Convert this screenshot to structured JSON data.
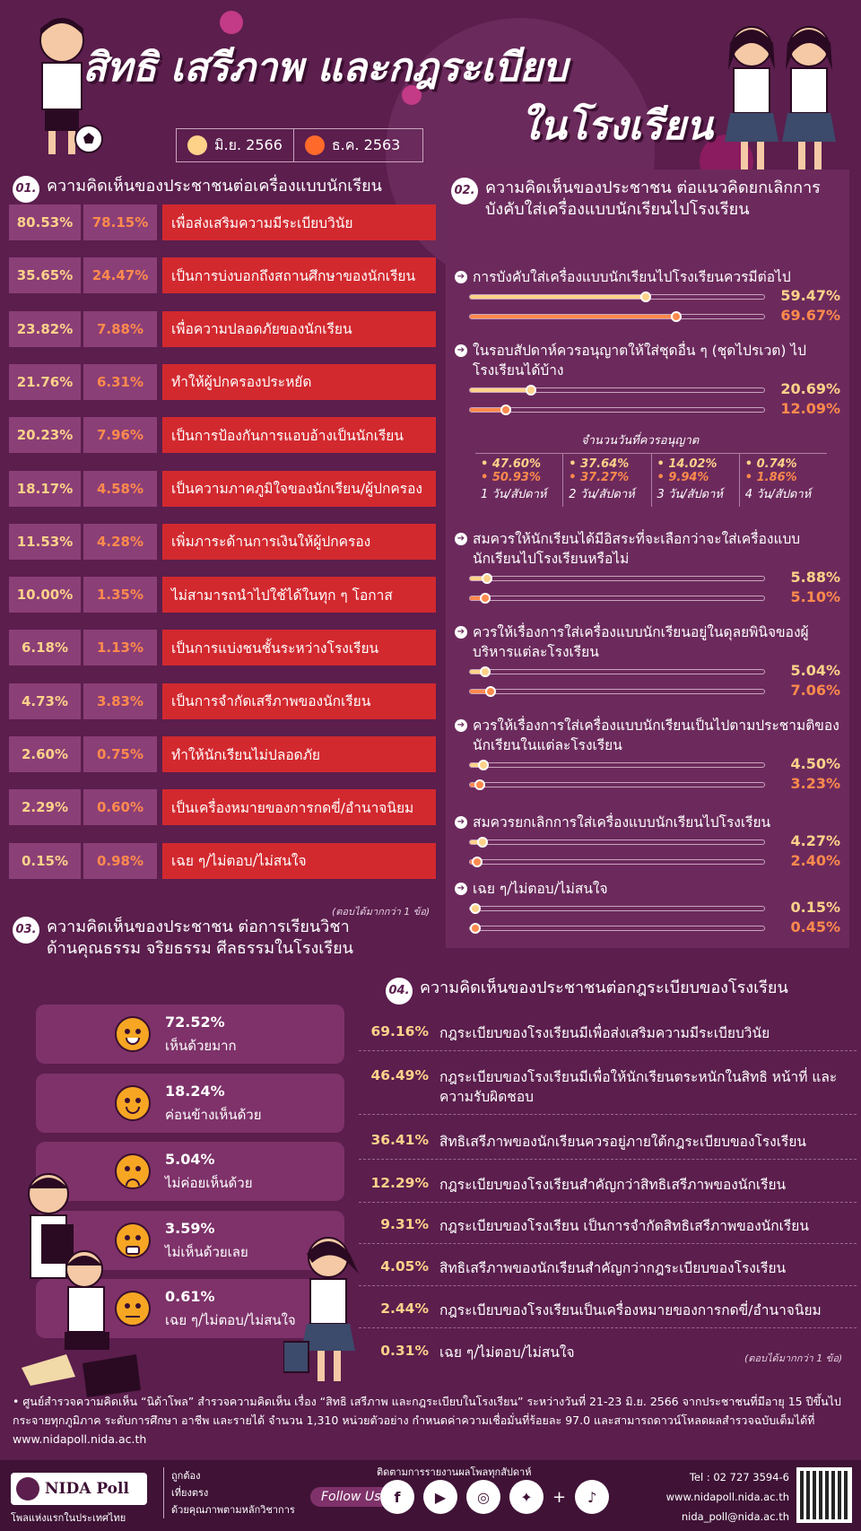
{
  "title_line1": "สิทธิ เสรีภาพ และกฎระเบียบ",
  "title_line2": "ในโรงเรียน",
  "legend": [
    {
      "label": "มิ.ย. 2566",
      "color": "#ffd28a"
    },
    {
      "label": "ธ.ค. 2563",
      "color": "#ff6a2b"
    }
  ],
  "s1": {
    "num": "01.",
    "heading": "ความคิดเห็นของประชาชนต่อเครื่องแบบนักเรียน",
    "note": "(ตอบได้มากกว่า 1 ข้อ)",
    "rows": [
      {
        "a": "80.53%",
        "b": "78.15%",
        "label": "เพื่อส่งเสริมความมีระเบียบวินัย"
      },
      {
        "a": "35.65%",
        "b": "24.47%",
        "label": "เป็นการบ่งบอกถึงสถานศึกษาของนักเรียน"
      },
      {
        "a": "23.82%",
        "b": "7.88%",
        "label": "เพื่อความปลอดภัยของนักเรียน"
      },
      {
        "a": "21.76%",
        "b": "6.31%",
        "label": "ทำให้ผู้ปกครองประหยัด"
      },
      {
        "a": "20.23%",
        "b": "7.96%",
        "label": "เป็นการป้องกันการแอบอ้างเป็นนักเรียน"
      },
      {
        "a": "18.17%",
        "b": "4.58%",
        "label": "เป็นความภาคภูมิใจของนักเรียน/ผู้ปกครอง"
      },
      {
        "a": "11.53%",
        "b": "4.28%",
        "label": "เพิ่มภาระด้านการเงินให้ผู้ปกครอง"
      },
      {
        "a": "10.00%",
        "b": "1.35%",
        "label": "ไม่สามารถนำไปใช้ได้ในทุก ๆ โอกาส"
      },
      {
        "a": "6.18%",
        "b": "1.13%",
        "label": "เป็นการแบ่งชนชั้นระหว่างโรงเรียน"
      },
      {
        "a": "4.73%",
        "b": "3.83%",
        "label": "เป็นการจำกัดเสรีภาพของนักเรียน"
      },
      {
        "a": "2.60%",
        "b": "0.75%",
        "label": "ทำให้นักเรียนไม่ปลอดภัย"
      },
      {
        "a": "2.29%",
        "b": "0.60%",
        "label": "เป็นเครื่องหมายของการกดขี่/อำนาจนิยม"
      },
      {
        "a": "0.15%",
        "b": "0.98%",
        "label": "เฉย ๆ/ไม่ตอบ/ไม่สนใจ"
      }
    ]
  },
  "s2": {
    "num": "02.",
    "heading": "ความคิดเห็นของประชาชน ต่อแนวคิดยกเลิกการบังคับใส่เครื่องแบบนักเรียนไปโรงเรียน",
    "items": [
      {
        "q": "การบังคับใส่เครื่องแบบนักเรียนไปโรงเรียนควรมีต่อไป",
        "v1": 59.47,
        "v2": 69.67,
        "t1": "59.47%",
        "t2": "69.67%"
      },
      {
        "q": "ในรอบสัปดาห์ควรอนุญาตให้ใส่ชุดอื่น ๆ (ชุดไปรเวต) ไปโรงเรียนได้บ้าง",
        "v1": 20.69,
        "v2": 12.09,
        "t1": "20.69%",
        "t2": "12.09%"
      },
      {
        "q": "สมควรให้นักเรียนได้มีอิสระที่จะเลือกว่าจะใส่เครื่องแบบนักเรียนไปโรงเรียนหรือไม่",
        "v1": 5.88,
        "v2": 5.1,
        "t1": "5.88%",
        "t2": "5.10%"
      },
      {
        "q": "ควรให้เรื่องการใส่เครื่องแบบนักเรียนอยู่ในดุลยพินิจของผู้บริหารแต่ละโรงเรียน",
        "v1": 5.04,
        "v2": 7.06,
        "t1": "5.04%",
        "t2": "7.06%"
      },
      {
        "q": "ควรให้เรื่องการใส่เครื่องแบบนักเรียนเป็นไปตามประชามติของนักเรียนในแต่ละโรงเรียน",
        "v1": 4.5,
        "v2": 3.23,
        "t1": "4.50%",
        "t2": "3.23%"
      },
      {
        "q": "สมควรยกเลิกการใส่เครื่องแบบนักเรียนไปโรงเรียน",
        "v1": 4.27,
        "v2": 2.4,
        "t1": "4.27%",
        "t2": "2.40%"
      },
      {
        "q": "เฉย ๆ/ไม่ตอบ/ไม่สนใจ",
        "v1": 0.15,
        "v2": 0.45,
        "t1": "0.15%",
        "t2": "0.45%"
      }
    ],
    "days_title": "จำนวนวันที่ควรอนุญาต",
    "days": [
      {
        "v1": "• 47.60%",
        "v2": "• 50.93%",
        "label": "1 วัน/สัปดาห์"
      },
      {
        "v1": "• 37.64%",
        "v2": "• 37.27%",
        "label": "2 วัน/สัปดาห์"
      },
      {
        "v1": "• 14.02%",
        "v2": "• 9.94%",
        "label": "3 วัน/สัปดาห์"
      },
      {
        "v1": "• 0.74%",
        "v2": "• 1.86%",
        "label": "4 วัน/สัปดาห์"
      }
    ]
  },
  "s3": {
    "num": "03.",
    "heading": "ความคิดเห็นของประชาชน ต่อการเรียนวิชาด้านคุณธรรม จริยธรรม ศีลธรรมในโรงเรียน",
    "items": [
      {
        "v": "72.52%",
        "label": "เห็นด้วยมาก"
      },
      {
        "v": "18.24%",
        "label": "ค่อนข้างเห็นด้วย"
      },
      {
        "v": "5.04%",
        "label": "ไม่ค่อยเห็นด้วย"
      },
      {
        "v": "3.59%",
        "label": "ไม่เห็นด้วยเลย"
      },
      {
        "v": "0.61%",
        "label": "เฉย ๆ/ไม่ตอบ/ไม่สนใจ"
      }
    ]
  },
  "s4": {
    "num": "04.",
    "heading": "ความคิดเห็นของประชาชนต่อกฎระเบียบของโรงเรียน",
    "note": "(ตอบได้มากกว่า 1 ข้อ)",
    "rows": [
      {
        "v": "69.16%",
        "label": "กฎระเบียบของโรงเรียนมีเพื่อส่งเสริมความมีระเบียบวินัย"
      },
      {
        "v": "46.49%",
        "label": "กฎระเบียบของโรงเรียนมีเพื่อให้นักเรียนตระหนักในสิทธิ หน้าที่ และความรับผิดชอบ"
      },
      {
        "v": "36.41%",
        "label": "สิทธิเสรีภาพของนักเรียนควรอยู่ภายใต้กฎระเบียบของโรงเรียน"
      },
      {
        "v": "12.29%",
        "label": "กฎระเบียบของโรงเรียนสำคัญกว่าสิทธิเสรีภาพของนักเรียน"
      },
      {
        "v": "9.31%",
        "label": "กฎระเบียบของโรงเรียน เป็นการจำกัดสิทธิเสรีภาพของนักเรียน"
      },
      {
        "v": "4.05%",
        "label": "สิทธิเสรีภาพของนักเรียนสำคัญกว่ากฎระเบียบของโรงเรียน"
      },
      {
        "v": "2.44%",
        "label": "กฎระเบียบของโรงเรียนเป็นเครื่องหมายของการกดขี่/อำนาจนิยม"
      },
      {
        "v": "0.31%",
        "label": "เฉย ๆ/ไม่ตอบ/ไม่สนใจ"
      }
    ]
  },
  "footnote": "• ศูนย์สำรวจความคิดเห็น “นิด้าโพล” สำรวจความคิดเห็น เรื่อง “สิทธิ เสรีภาพ และกฎระเบียบในโรงเรียน” ระหว่างวันที่ 21-23 มิ.ย. 2566 จากประชาชนที่มีอายุ 15 ปีขึ้นไป กระจายทุกภูมิภาค ระดับการศึกษา อาชีพ และรายได้ จำนวน 1,310 หน่วยตัวอย่าง กำหนดค่าความเชื่อมั่นที่ร้อยละ 97.0 และสามารถดาวน์โหลดผลสำรวจฉบับเต็มได้ที่ www.nidapoll.nida.ac.th",
  "footer": {
    "brand": "NIDA Poll",
    "tagline": "โพลแห่งแรกในประเทศไทย",
    "slogan": [
      "ถูกต้อง",
      "เที่ยงตรง",
      "ด้วยคุณภาพตามหลักวิชาการ"
    ],
    "follow_title": "ติดตามการรายงานผลโพลทุกสัปดาห์",
    "follow": "Follow Us",
    "tel": "Tel : 02 727 3594-6",
    "web": "www.nidapoll.nida.ac.th",
    "email": "nida_poll@nida.ac.th"
  },
  "chart_data": [
    {
      "type": "bar",
      "title": "ความคิดเห็นของประชาชนต่อเครื่องแบบนักเรียน",
      "categories": [
        "เพื่อส่งเสริมความมีระเบียบวินัย",
        "เป็นการบ่งบอกถึงสถานศึกษาของนักเรียน",
        "เพื่อความปลอดภัยของนักเรียน",
        "ทำให้ผู้ปกครองประหยัด",
        "เป็นการป้องกันการแอบอ้างเป็นนักเรียน",
        "เป็นความภาคภูมิใจของนักเรียน/ผู้ปกครอง",
        "เพิ่มภาระด้านการเงินให้ผู้ปกครอง",
        "ไม่สามารถนำไปใช้ได้ในทุก ๆ โอกาส",
        "เป็นการแบ่งชนชั้นระหว่างโรงเรียน",
        "เป็นการจำกัดเสรีภาพของนักเรียน",
        "ทำให้นักเรียนไม่ปลอดภัย",
        "เป็นเครื่องหมายของการกดขี่/อำนาจนิยม",
        "เฉย ๆ/ไม่ตอบ/ไม่สนใจ"
      ],
      "series": [
        {
          "name": "มิ.ย. 2566",
          "values": [
            80.53,
            35.65,
            23.82,
            21.76,
            20.23,
            18.17,
            11.53,
            10.0,
            6.18,
            4.73,
            2.6,
            2.29,
            0.15
          ]
        },
        {
          "name": "ธ.ค. 2563",
          "values": [
            78.15,
            24.47,
            7.88,
            6.31,
            7.96,
            4.58,
            4.28,
            1.35,
            1.13,
            3.83,
            0.75,
            0.6,
            0.98
          ]
        }
      ]
    },
    {
      "type": "bar",
      "title": "ความคิดเห็นของประชาชน ต่อแนวคิดยกเลิกการบังคับใส่เครื่องแบบนักเรียนไปโรงเรียน",
      "series": [
        {
          "name": "มิ.ย. 2566",
          "values": [
            59.47,
            20.69,
            5.88,
            5.04,
            4.5,
            4.27,
            0.15
          ]
        },
        {
          "name": "ธ.ค. 2563",
          "values": [
            69.67,
            12.09,
            5.1,
            7.06,
            3.23,
            2.4,
            0.45
          ]
        }
      ]
    },
    {
      "type": "bar",
      "title": "ความคิดเห็นของประชาชน ต่อการเรียนวิชาด้านคุณธรรม จริยธรรม ศีลธรรมในโรงเรียน",
      "categories": [
        "เห็นด้วยมาก",
        "ค่อนข้างเห็นด้วย",
        "ไม่ค่อยเห็นด้วย",
        "ไม่เห็นด้วยเลย",
        "เฉย ๆ/ไม่ตอบ/ไม่สนใจ"
      ],
      "values": [
        72.52,
        18.24,
        5.04,
        3.59,
        0.61
      ]
    },
    {
      "type": "bar",
      "title": "ความคิดเห็นของประชาชนต่อกฎระเบียบของโรงเรียน",
      "values": [
        69.16,
        46.49,
        36.41,
        12.29,
        9.31,
        4.05,
        2.44,
        0.31
      ]
    }
  ]
}
